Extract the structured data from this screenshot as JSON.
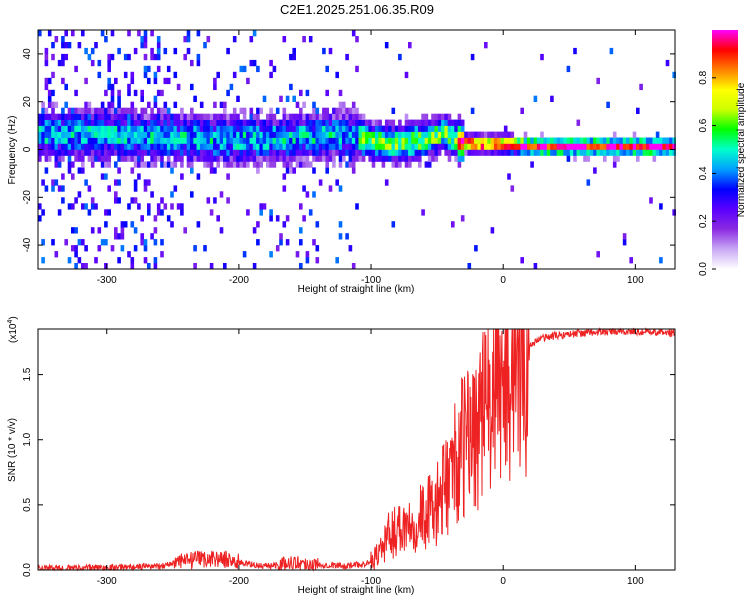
{
  "title": "C2E1.2025.251.06.35.R09",
  "chart_data": [
    {
      "type": "heatmap",
      "xlabel": "Height of straight line (km)",
      "ylabel": "Frequency (Hz)",
      "xlim": [
        -352,
        130
      ],
      "ylim": [
        -50,
        50
      ],
      "xticks": [
        -300,
        -200,
        -100,
        0,
        100
      ],
      "yticks": [
        -40,
        -20,
        0,
        20,
        40
      ],
      "colorbar": {
        "label": "Normalized spectral amplitude",
        "range": [
          0.0,
          1.0
        ],
        "ticks": [
          "0.0",
          "0.2",
          "0.4",
          "0.6",
          "0.8"
        ],
        "tick_values": [
          0.0,
          0.2,
          0.4,
          0.6,
          0.8
        ],
        "colormap": [
          "#ffffff",
          "#c9a8f5",
          "#8a2be2",
          "#5a00ff",
          "#0000ff",
          "#00a0ff",
          "#00ffcc",
          "#00ff00",
          "#ccff00",
          "#ffff00",
          "#ff8000",
          "#ff0000",
          "#ff00ff"
        ]
      },
      "ridge": [
        {
          "x": -352,
          "y": 5
        },
        {
          "x": -300,
          "y": 5
        },
        {
          "x": -260,
          "y": 4
        },
        {
          "x": -220,
          "y": 3
        },
        {
          "x": -180,
          "y": 3
        },
        {
          "x": -150,
          "y": 4
        },
        {
          "x": -120,
          "y": 5
        },
        {
          "x": -100,
          "y": 2
        },
        {
          "x": -80,
          "y": 1
        },
        {
          "x": -60,
          "y": 3
        },
        {
          "x": -45,
          "y": 6
        },
        {
          "x": -35,
          "y": 2
        },
        {
          "x": -20,
          "y": 1
        },
        {
          "x": 0,
          "y": 1
        },
        {
          "x": 20,
          "y": 0
        },
        {
          "x": 130,
          "y": 0
        }
      ]
    },
    {
      "type": "line",
      "xlabel": "Height of straight line (km)",
      "ylabel": "SNR (10 * v/v)",
      "y_scale_label": "(x10",
      "y_scale_exp": "4",
      "y_scale_close": ")",
      "xlim": [
        -352,
        130
      ],
      "ylim": [
        0,
        1.85
      ],
      "xticks": [
        -300,
        -200,
        -100,
        0,
        100
      ],
      "yticks": [
        0.0,
        0.5,
        1.0,
        1.5
      ],
      "ytick_labels": [
        "0.0",
        "0.5",
        "1.0",
        "1.5"
      ],
      "series": [
        {
          "color": "#ee2222",
          "x": [
            -352,
            -300,
            -260,
            -250,
            -240,
            -230,
            -220,
            -210,
            -200,
            -190,
            -180,
            -170,
            -160,
            -150,
            -140,
            -130,
            -120,
            -110,
            -100,
            -95,
            -90,
            -85,
            -80,
            -75,
            -70,
            -65,
            -60,
            -55,
            -50,
            -45,
            -40,
            -35,
            -30,
            -25,
            -20,
            -15,
            -10,
            -5,
            0,
            5,
            10,
            15,
            20,
            25,
            30,
            35,
            40,
            50,
            60,
            80,
            100,
            130
          ],
          "y": [
            0.01,
            0.02,
            0.03,
            0.05,
            0.07,
            0.08,
            0.09,
            0.08,
            0.06,
            0.04,
            0.03,
            0.04,
            0.06,
            0.05,
            0.04,
            0.04,
            0.03,
            0.04,
            0.06,
            0.12,
            0.2,
            0.28,
            0.32,
            0.35,
            0.38,
            0.4,
            0.42,
            0.45,
            0.5,
            0.6,
            0.75,
            0.85,
            0.95,
            1.05,
            1.1,
            1.2,
            1.3,
            1.38,
            1.45,
            1.52,
            1.6,
            1.66,
            1.72,
            1.76,
            1.78,
            1.79,
            1.8,
            1.81,
            1.82,
            1.83,
            1.83,
            1.82
          ]
        }
      ]
    }
  ]
}
